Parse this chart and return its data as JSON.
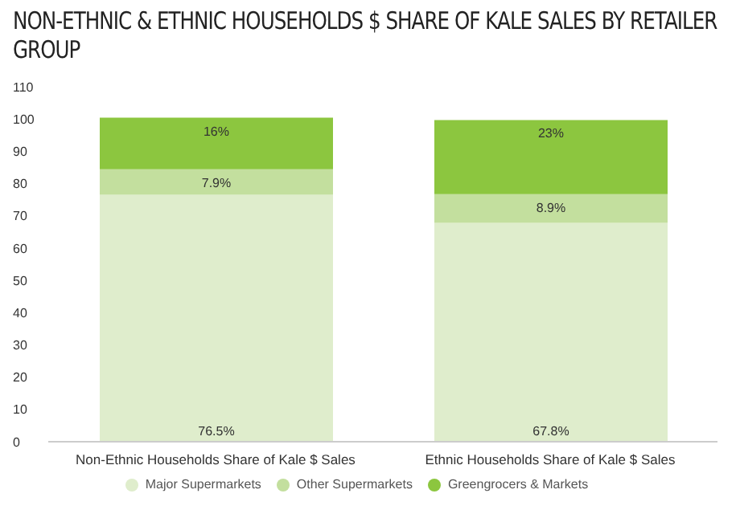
{
  "chart_data": {
    "type": "bar",
    "title": "NON-ETHNIC & ETHNIC HOUSEHOLDS $ SHARE OF KALE SALES BY RETAILER GROUP",
    "categories": [
      "Non-Ethnic Households Share of Kale $ Sales",
      "Ethnic Households Share of Kale $ Sales"
    ],
    "stacked": true,
    "ylim": [
      0,
      110
    ],
    "yticks": [
      0,
      10,
      20,
      30,
      40,
      50,
      60,
      70,
      80,
      90,
      100,
      110
    ],
    "grid": false,
    "legend": "bottom",
    "series": [
      {
        "name": "Major Supermarkets",
        "color": "#dfedcc",
        "values": [
          76.5,
          67.8
        ],
        "value_labels": [
          "76.5%",
          "67.8%"
        ]
      },
      {
        "name": "Other Supermarkets",
        "color": "#c3df9e",
        "values": [
          7.9,
          8.9
        ],
        "value_labels": [
          "7.9%",
          "8.9%"
        ]
      },
      {
        "name": "Greengrocers & Markets",
        "color": "#8cc63f",
        "values": [
          16,
          23
        ],
        "value_labels": [
          "16%",
          "23%"
        ]
      }
    ]
  }
}
